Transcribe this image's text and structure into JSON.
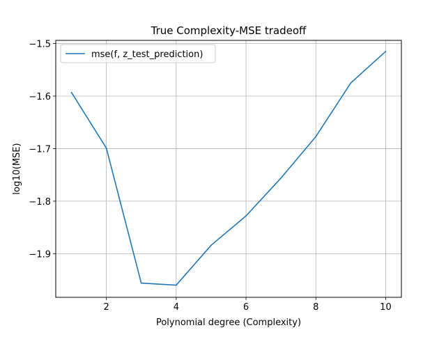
{
  "chart_data": {
    "type": "line",
    "title": "True Complexity-MSE tradeoff",
    "xlabel": "Polynomial degree (Complexity)",
    "ylabel": "log10(MSE)",
    "xlim": [
      0.55,
      10.45
    ],
    "ylim": [
      -1.983,
      -1.494
    ],
    "grid": true,
    "legend_placement": "upper-left",
    "x_ticks": [
      2,
      4,
      6,
      8,
      10
    ],
    "x_tick_labels": [
      "2",
      "4",
      "6",
      "8",
      "10"
    ],
    "y_ticks": [
      -1.5,
      -1.6,
      -1.7,
      -1.8,
      -1.9
    ],
    "y_tick_labels": [
      "−1.5",
      "−1.6",
      "−1.7",
      "−1.8",
      "−1.9"
    ],
    "series": [
      {
        "name": "mse(f, z_test_prediction)",
        "color": "#1f77b4",
        "x": [
          1,
          2,
          3,
          4,
          5,
          6,
          7,
          8,
          9,
          10
        ],
        "y": [
          -1.593,
          -1.699,
          -1.956,
          -1.96,
          -1.884,
          -1.828,
          -1.756,
          -1.677,
          -1.575,
          -1.515
        ]
      }
    ]
  }
}
